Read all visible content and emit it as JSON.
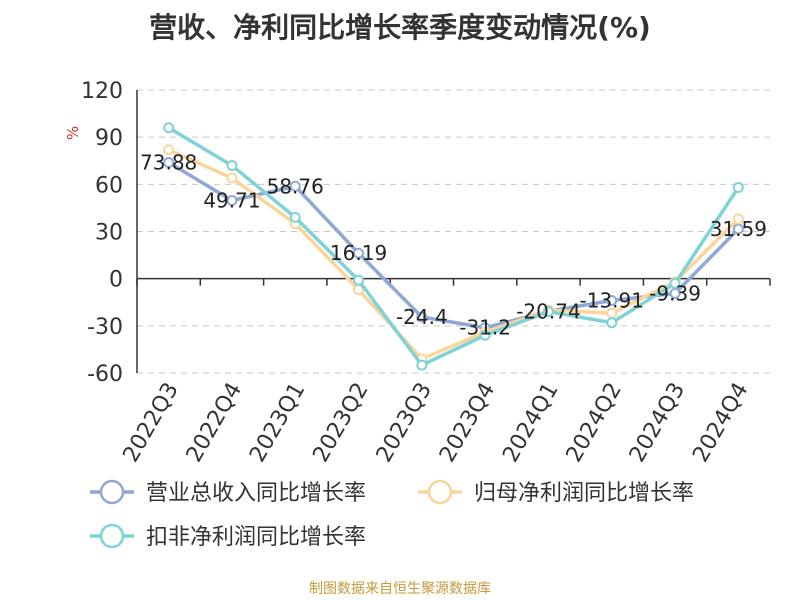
{
  "chart_data": {
    "type": "line",
    "title": "营收、净利同比增长率季度变动情况(%)",
    "ylabel": "%",
    "ylim": [
      -60,
      120
    ],
    "yticks": [
      120,
      90,
      60,
      30,
      0,
      -30,
      -60
    ],
    "grid": true,
    "legend_position": "bottom",
    "categories": [
      "2022Q3",
      "2022Q4",
      "2023Q1",
      "2023Q2",
      "2023Q3",
      "2023Q4",
      "2024Q1",
      "2024Q2",
      "2024Q3",
      "2024Q4"
    ],
    "series": [
      {
        "name": "营业总收入同比增长率",
        "color": "#8fa8d6",
        "values": [
          73.88,
          49.71,
          58.76,
          16.19,
          -24.4,
          -31.2,
          -20.74,
          -13.91,
          -9.39,
          31.59
        ],
        "labels": [
          "73.88",
          "49.71",
          "58.76",
          "16.19",
          "-24.4",
          "-31.2",
          "-20.74",
          "-13.91",
          "-9.39",
          "31.59"
        ]
      },
      {
        "name": "归母净利润同比增长率",
        "color": "#f9d59b",
        "values": [
          82,
          64,
          35,
          -7,
          -51,
          -34,
          -20,
          -22,
          -2,
          38
        ]
      },
      {
        "name": "扣非净利润同比增长率",
        "color": "#7fd3d6",
        "values": [
          96,
          72,
          39,
          -1,
          -55,
          -36,
          -21,
          -28,
          -3,
          58
        ]
      }
    ]
  },
  "footer": {
    "source": "制图数据来自恒生聚源数据库"
  }
}
